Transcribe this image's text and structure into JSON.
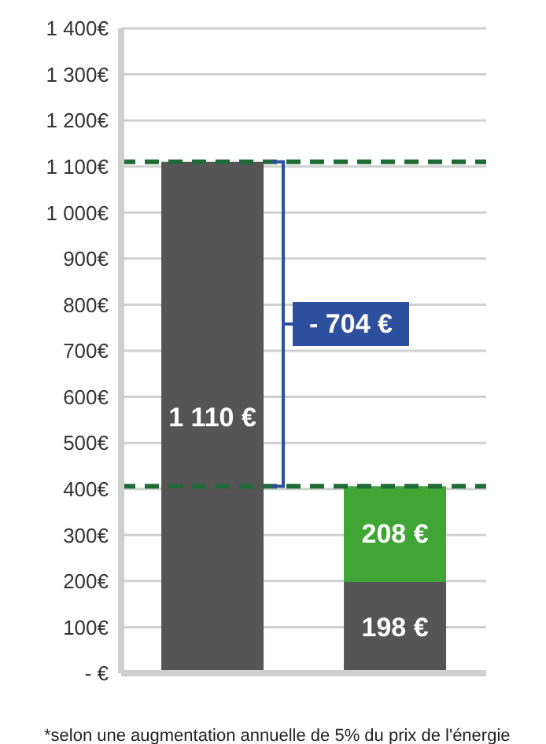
{
  "chart_data": {
    "type": "bar",
    "stacked": true,
    "categories": [
      null,
      null
    ],
    "series": [
      {
        "color": "#555555",
        "values": [
          1110,
          198
        ],
        "value_labels": [
          "1 110 €",
          "198 €"
        ]
      },
      {
        "color": "#3fa535",
        "values": [
          null,
          208
        ],
        "value_labels": [
          null,
          "208 €"
        ]
      }
    ],
    "ylim": [
      0,
      1400
    ],
    "yticks": [
      {
        "value": 0,
        "label": "- €"
      },
      {
        "value": 100,
        "label": "100€"
      },
      {
        "value": 200,
        "label": "200€"
      },
      {
        "value": 300,
        "label": "300€"
      },
      {
        "value": 400,
        "label": "400€"
      },
      {
        "value": 500,
        "label": "500€"
      },
      {
        "value": 600,
        "label": "600€"
      },
      {
        "value": 700,
        "label": "700€"
      },
      {
        "value": 800,
        "label": "800€"
      },
      {
        "value": 900,
        "label": "900€"
      },
      {
        "value": 1000,
        "label": "1 000€"
      },
      {
        "value": 1100,
        "label": "1 100€"
      },
      {
        "value": 1200,
        "label": "1 200€"
      },
      {
        "value": 1300,
        "label": "1 300€"
      },
      {
        "value": 1400,
        "label": "1 400€"
      }
    ],
    "grid": "y",
    "ref_lines": [
      {
        "axis": "y",
        "value": 1110,
        "color": "#1e6b35",
        "line_style": "dashed"
      },
      {
        "axis": "y",
        "value": 406,
        "color": "#1e6b35",
        "line_style": "dashed"
      }
    ],
    "annotations": [
      "- 704 €",
      "*selon une augmentation annuelle de 5% du prix de l'énergie"
    ]
  }
}
